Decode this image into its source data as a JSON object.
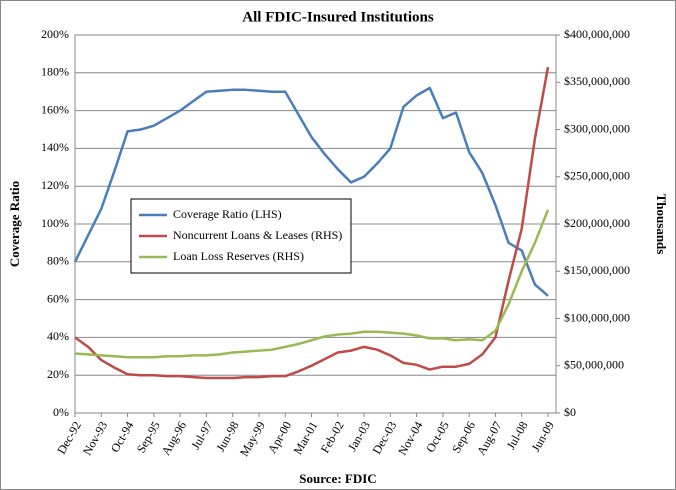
{
  "chart_data": {
    "type": "line",
    "title": "All FDIC-Insured Institutions",
    "ylabel": "Coverage Ratio",
    "y2label": "Thousands",
    "source": "Source:  FDIC",
    "categories": [
      "Dec-92",
      null,
      "Nov-93",
      null,
      "Oct-94",
      null,
      "Sep-95",
      null,
      "Aug-96",
      null,
      "Jul-97",
      null,
      "Jun-98",
      null,
      "May-99",
      null,
      "Apr-00",
      null,
      "Mar-01",
      null,
      "Feb-02",
      null,
      "Jan-03",
      null,
      "Dec-03",
      null,
      "Nov-04",
      null,
      "Oct-05",
      null,
      "Sep-06",
      null,
      "Aug-07",
      null,
      "Jul-08",
      null,
      "Jun-09"
    ],
    "series": [
      {
        "name": "Coverage Ratio (LHS)",
        "color": "#4a7ebb",
        "axis": "y",
        "values": [
          80,
          94,
          108,
          128,
          149,
          150,
          152,
          156,
          160,
          165,
          170,
          170.5,
          171,
          171,
          170.5,
          170,
          170,
          158,
          146,
          137,
          129,
          122,
          125,
          132,
          140,
          162,
          168,
          172,
          156,
          159,
          138,
          127,
          110,
          90,
          86,
          68,
          62
        ]
      },
      {
        "name": "Noncurrent Loans & Leases (RHS)",
        "color": "#be4b48",
        "axis": "y2",
        "values": [
          80000000,
          70000000,
          56000000,
          48000000,
          41000000,
          40000000,
          40000000,
          39000000,
          39000000,
          38000000,
          37000000,
          37000000,
          37000000,
          38000000,
          38000000,
          39000000,
          39000000,
          44000000,
          50000000,
          57000000,
          64000000,
          66000000,
          70000000,
          67000000,
          61000000,
          53000000,
          51000000,
          46000000,
          49000000,
          49000000,
          52000000,
          62000000,
          80000000,
          140000000,
          195000000,
          290000000,
          366000000
        ]
      },
      {
        "name": "Loan Loss Reserves (RHS)",
        "color": "#98b954",
        "axis": "y2",
        "values": [
          63000000,
          62000000,
          61000000,
          60000000,
          59000000,
          59000000,
          59000000,
          60000000,
          60000000,
          61000000,
          61000000,
          62000000,
          64000000,
          65000000,
          66000000,
          67000000,
          70000000,
          73000000,
          77000000,
          81000000,
          83000000,
          84000000,
          86000000,
          86000000,
          85000000,
          84000000,
          82000000,
          79000000,
          79000000,
          77000000,
          78000000,
          77000000,
          87000000,
          115000000,
          150000000,
          180000000,
          215000000
        ]
      }
    ],
    "ylim": [
      0,
      200
    ],
    "yticks": [
      {
        "value": 0,
        "label": "0%"
      },
      {
        "value": 20,
        "label": "20%"
      },
      {
        "value": 40,
        "label": "40%"
      },
      {
        "value": 60,
        "label": "60%"
      },
      {
        "value": 80,
        "label": "80%"
      },
      {
        "value": 100,
        "label": "100%"
      },
      {
        "value": 120,
        "label": "120%"
      },
      {
        "value": 140,
        "label": "140%"
      },
      {
        "value": 160,
        "label": "160%"
      },
      {
        "value": 180,
        "label": "180%"
      },
      {
        "value": 200,
        "label": "200%"
      }
    ],
    "y2lim": [
      0,
      400000000
    ],
    "y2ticks": [
      {
        "value": 0,
        "label": "$0"
      },
      {
        "value": 50000000,
        "label": "$50,000,000"
      },
      {
        "value": 100000000,
        "label": "$100,000,000"
      },
      {
        "value": 150000000,
        "label": "$150,000,000"
      },
      {
        "value": 200000000,
        "label": "$200,000,000"
      },
      {
        "value": 250000000,
        "label": "$250,000,000"
      },
      {
        "value": 300000000,
        "label": "$300,000,000"
      },
      {
        "value": 350000000,
        "label": "$350,000,000"
      },
      {
        "value": 400000000,
        "label": "$400,000,000"
      }
    ],
    "grid": true,
    "legend": "left"
  }
}
